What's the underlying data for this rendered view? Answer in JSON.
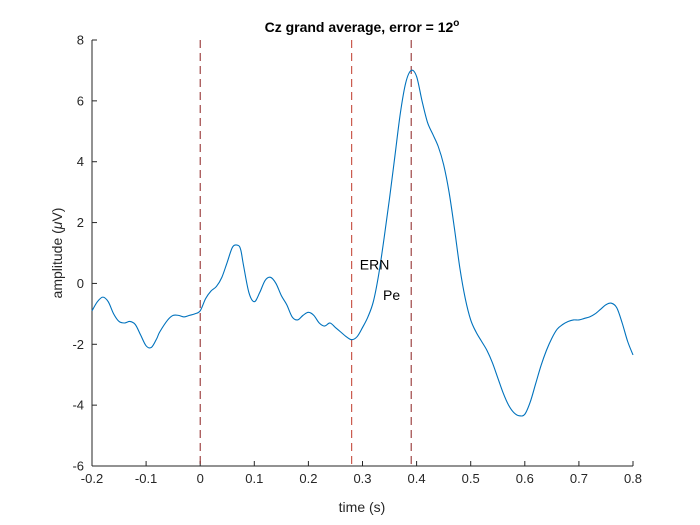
{
  "chart_data": {
    "type": "line",
    "title_main": "Cz grand average, error = 12",
    "title_superscript": "o",
    "xlabel": "time (s)",
    "ylabel_prefix": "amplitude (",
    "ylabel_symbol": "μ",
    "ylabel_suffix": "V)",
    "xlim": [
      -0.2,
      0.8
    ],
    "ylim": [
      -6,
      8
    ],
    "xticks": [
      -0.2,
      -0.1,
      0,
      0.1,
      0.2,
      0.3,
      0.4,
      0.5,
      0.6,
      0.7,
      0.8
    ],
    "xtick_labels": [
      "-0.2",
      "-0.1",
      "0",
      "0.1",
      "0.2",
      "0.3",
      "0.4",
      "0.5",
      "0.6",
      "0.7",
      "0.8"
    ],
    "yticks": [
      -6,
      -4,
      -2,
      0,
      2,
      4,
      6,
      8
    ],
    "ytick_labels": [
      "-6",
      "-4",
      "-2",
      "0",
      "2",
      "4",
      "6",
      "8"
    ],
    "grid": false,
    "series": [
      {
        "color": "#0072BD",
        "x": [
          -0.2,
          -0.19,
          -0.18,
          -0.17,
          -0.16,
          -0.15,
          -0.14,
          -0.13,
          -0.12,
          -0.11,
          -0.1,
          -0.09,
          -0.08,
          -0.075,
          -0.06,
          -0.05,
          -0.04,
          -0.03,
          -0.02,
          -0.01,
          0,
          0.01,
          0.02,
          0.03,
          0.04,
          0.05,
          0.06,
          0.07,
          0.075,
          0.08,
          0.09,
          0.1,
          0.11,
          0.12,
          0.13,
          0.14,
          0.15,
          0.16,
          0.17,
          0.18,
          0.19,
          0.2,
          0.21,
          0.22,
          0.23,
          0.24,
          0.25,
          0.26,
          0.27,
          0.28,
          0.29,
          0.3,
          0.31,
          0.32,
          0.33,
          0.34,
          0.35,
          0.36,
          0.37,
          0.38,
          0.39,
          0.4,
          0.41,
          0.42,
          0.43,
          0.44,
          0.45,
          0.46,
          0.47,
          0.48,
          0.49,
          0.5,
          0.51,
          0.52,
          0.53,
          0.54,
          0.55,
          0.56,
          0.57,
          0.58,
          0.59,
          0.6,
          0.61,
          0.62,
          0.63,
          0.64,
          0.65,
          0.66,
          0.67,
          0.68,
          0.69,
          0.7,
          0.71,
          0.72,
          0.73,
          0.74,
          0.75,
          0.76,
          0.77,
          0.78,
          0.79,
          0.8
        ],
        "y": [
          -0.9,
          -0.6,
          -0.45,
          -0.6,
          -1.0,
          -1.25,
          -1.3,
          -1.25,
          -1.35,
          -1.7,
          -2.05,
          -2.1,
          -1.8,
          -1.6,
          -1.2,
          -1.05,
          -1.05,
          -1.1,
          -1.05,
          -1.0,
          -0.9,
          -0.5,
          -0.25,
          -0.1,
          0.2,
          0.7,
          1.2,
          1.25,
          1.1,
          0.6,
          -0.3,
          -0.6,
          -0.3,
          0.1,
          0.2,
          0.0,
          -0.4,
          -0.7,
          -1.1,
          -1.2,
          -1.05,
          -0.95,
          -1.05,
          -1.3,
          -1.4,
          -1.3,
          -1.45,
          -1.6,
          -1.75,
          -1.85,
          -1.75,
          -1.45,
          -1.1,
          -0.6,
          0.3,
          1.5,
          2.8,
          4.2,
          5.6,
          6.6,
          7.0,
          6.8,
          6.0,
          5.3,
          4.9,
          4.5,
          3.9,
          3.0,
          1.8,
          0.5,
          -0.5,
          -1.2,
          -1.6,
          -1.9,
          -2.2,
          -2.6,
          -3.1,
          -3.6,
          -4.0,
          -4.25,
          -4.35,
          -4.3,
          -3.9,
          -3.3,
          -2.7,
          -2.2,
          -1.8,
          -1.5,
          -1.35,
          -1.25,
          -1.2,
          -1.2,
          -1.15,
          -1.1,
          -1.0,
          -0.85,
          -0.7,
          -0.65,
          -0.8,
          -1.3,
          -1.9,
          -2.35
        ]
      }
    ],
    "vlines": [
      {
        "x": 0,
        "color": "#8B2020"
      },
      {
        "x": 0.28,
        "color": "#C0392B"
      },
      {
        "x": 0.39,
        "color": "#8B2020"
      }
    ],
    "annotations": [
      {
        "text": "ERN",
        "x": 0.295,
        "y": 0.45
      },
      {
        "text": "Pe",
        "x": 0.338,
        "y": -0.55
      }
    ]
  }
}
